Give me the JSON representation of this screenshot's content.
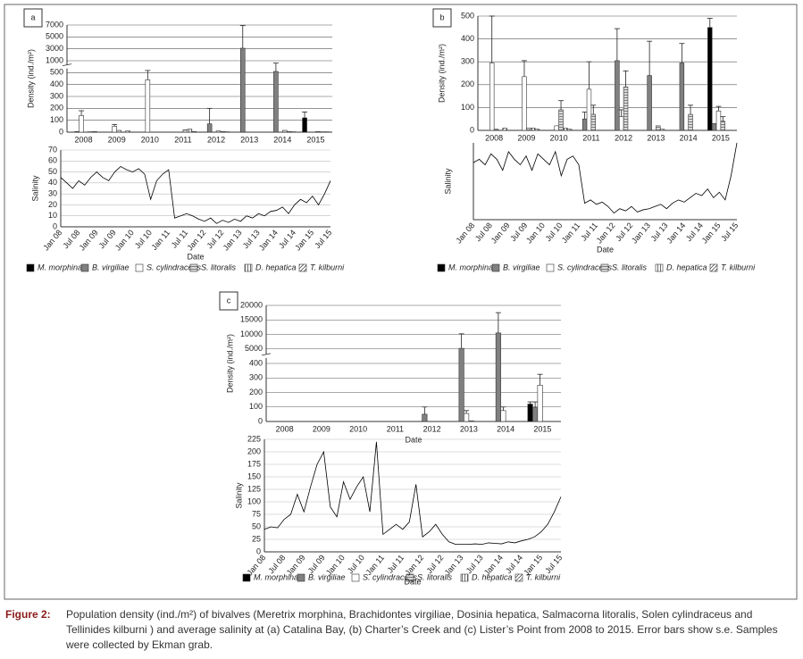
{
  "chart_data": [
    {
      "type": "bar",
      "label": "a",
      "ylabel": "Density (ind./m²)",
      "categories": [
        "2008",
        "2009",
        "2010",
        "2011",
        "2012",
        "2013",
        "2014",
        "2015"
      ],
      "ylim": [
        0,
        7000
      ],
      "yticks": [
        0,
        100,
        200,
        300,
        400,
        500,
        1000,
        3000,
        5000,
        7000
      ],
      "ybreak": true,
      "grid": true,
      "series": [
        {
          "name": "M. morphina",
          "color": "#000000",
          "pattern": "solid",
          "values": [
            0,
            0,
            0,
            0,
            0,
            0,
            0,
            120
          ],
          "errors": [
            null,
            null,
            null,
            null,
            null,
            null,
            null,
            50
          ]
        },
        {
          "name": "B. virgiliae",
          "color": "#808080",
          "pattern": "solid",
          "values": [
            5,
            0,
            0,
            0,
            70,
            3100,
            550,
            0
          ],
          "errors": [
            null,
            null,
            null,
            null,
            130,
            3800,
            350,
            null
          ]
        },
        {
          "name": "S. cylindraceus",
          "color": "#ffffff",
          "pattern": "solid",
          "values": [
            140,
            50,
            440,
            0,
            0,
            0,
            0,
            0
          ],
          "errors": [
            40,
            15,
            150,
            null,
            null,
            null,
            null,
            null
          ]
        },
        {
          "name": "S. litoralis",
          "color": "#d9d9d9",
          "pattern": "hlines",
          "values": [
            0,
            15,
            0,
            20,
            10,
            0,
            15,
            5
          ]
        },
        {
          "name": "D. hepatica",
          "color": "#ffffff",
          "pattern": "vlines",
          "values": [
            3,
            0,
            0,
            25,
            5,
            0,
            5,
            3
          ]
        },
        {
          "name": "T. kilburni",
          "color": "#ffffff",
          "pattern": "diag",
          "values": [
            5,
            10,
            0,
            5,
            3,
            0,
            3,
            3
          ]
        }
      ]
    },
    {
      "type": "line",
      "ylabel": "Salinity",
      "xlabel": "Date",
      "color": "#000000",
      "grid": true,
      "ylim": [
        0,
        70
      ],
      "yticks": [
        0,
        10,
        20,
        30,
        40,
        50,
        60,
        70
      ],
      "categories": [
        "Jan 08",
        null,
        null,
        "Jul 08",
        null,
        null,
        "Jan 09",
        null,
        null,
        "Jul 09",
        null,
        null,
        "Jan 10",
        null,
        null,
        "Jul 10",
        null,
        null,
        "Jan 11",
        null,
        null,
        "Jul 11",
        null,
        null,
        "Jan 12",
        null,
        null,
        "Jul 12",
        null,
        null,
        "Jan 13",
        null,
        null,
        "Jul 13",
        null,
        null,
        "Jan 14",
        null,
        null,
        "Jul 14",
        null,
        null,
        "Jan 15",
        null,
        null,
        "Jul 15"
      ],
      "values": [
        45,
        40,
        35,
        42,
        38,
        45,
        50,
        45,
        42,
        50,
        55,
        52,
        50,
        53,
        48,
        25,
        42,
        48,
        52,
        8,
        10,
        12,
        10,
        7,
        5,
        8,
        3,
        6,
        4,
        7,
        5,
        10,
        8,
        12,
        10,
        14,
        15,
        18,
        12,
        20,
        25,
        22,
        28,
        20,
        30,
        42
      ]
    },
    {
      "type": "bar",
      "label": "b",
      "ylabel": "Density (ind./m²)",
      "categories": [
        "2008",
        "2009",
        "2010",
        "2011",
        "2012",
        "2013",
        "2014",
        "2015"
      ],
      "ylim": [
        0,
        500
      ],
      "yticks": [
        0,
        100,
        200,
        300,
        400,
        500
      ],
      "grid": true,
      "series": [
        {
          "name": "M. morphina",
          "color": "#000000",
          "pattern": "solid",
          "values": [
            0,
            0,
            0,
            0,
            0,
            0,
            0,
            450
          ],
          "errors": [
            null,
            null,
            null,
            null,
            null,
            null,
            null,
            40
          ]
        },
        {
          "name": "B. virgiliae",
          "color": "#808080",
          "pattern": "solid",
          "values": [
            0,
            0,
            0,
            50,
            305,
            240,
            295,
            30
          ],
          "errors": [
            null,
            null,
            null,
            30,
            140,
            150,
            85,
            null
          ]
        },
        {
          "name": "S. cylindraceus",
          "color": "#ffffff",
          "pattern": "solid",
          "values": [
            295,
            235,
            20,
            180,
            60,
            0,
            0,
            85
          ],
          "errors": [
            205,
            70,
            null,
            120,
            30,
            null,
            null,
            20
          ]
        },
        {
          "name": "S. litoralis",
          "color": "#d9d9d9",
          "pattern": "hlines",
          "values": [
            5,
            10,
            90,
            70,
            190,
            20,
            70,
            40
          ],
          "errors": [
            null,
            null,
            40,
            40,
            70,
            null,
            40,
            20
          ]
        },
        {
          "name": "D. hepatica",
          "color": "#ffffff",
          "pattern": "vlines",
          "values": [
            0,
            10,
            10,
            0,
            0,
            5,
            0,
            0
          ]
        },
        {
          "name": "T. kilburni",
          "color": "#ffffff",
          "pattern": "diag",
          "values": [
            10,
            5,
            5,
            0,
            0,
            0,
            0,
            0
          ]
        }
      ]
    },
    {
      "type": "line",
      "ylabel": "Salinity",
      "xlabel": "Date",
      "color": "#000000",
      "grid": false,
      "ylim": [
        0,
        70
      ],
      "categories": [
        "Jan 08",
        null,
        null,
        "Jul 08",
        null,
        null,
        "Jan 09",
        null,
        null,
        "Jul 09",
        null,
        null,
        "Jan 10",
        null,
        null,
        "Jul 10",
        null,
        null,
        "Jan 11",
        null,
        null,
        "Jul 11",
        null,
        null,
        "Jan 12",
        null,
        null,
        "Jul 12",
        null,
        null,
        "Jan 13",
        null,
        null,
        "Jul 13",
        null,
        null,
        "Jan 14",
        null,
        null,
        "Jul 14",
        null,
        null,
        "Jan 15",
        null,
        null,
        "Jul 15"
      ],
      "values": [
        52,
        55,
        50,
        60,
        55,
        45,
        62,
        55,
        50,
        58,
        45,
        60,
        55,
        50,
        62,
        40,
        55,
        58,
        50,
        15,
        18,
        14,
        16,
        12,
        6,
        10,
        8,
        12,
        7,
        9,
        10,
        12,
        14,
        10,
        15,
        18,
        16,
        20,
        24,
        22,
        28,
        20,
        25,
        18,
        40,
        70
      ]
    },
    {
      "type": "bar",
      "label": "c",
      "ylabel": "Density (ind./m²)",
      "xlabel": "Date",
      "categories": [
        "2008",
        "2009",
        "2010",
        "2011",
        "2012",
        "2013",
        "2014",
        "2015"
      ],
      "ylim": [
        0,
        20000
      ],
      "yticks": [
        0,
        100,
        200,
        300,
        400,
        5000,
        10000,
        15000,
        20000
      ],
      "ybreak": true,
      "grid": true,
      "series": [
        {
          "name": "M. morphina",
          "color": "#000000",
          "pattern": "solid",
          "values": [
            0,
            0,
            0,
            0,
            0,
            0,
            0,
            120
          ],
          "errors": [
            null,
            null,
            null,
            null,
            null,
            null,
            null,
            15
          ]
        },
        {
          "name": "B. virgiliae",
          "color": "#808080",
          "pattern": "solid",
          "values": [
            0,
            0,
            0,
            0,
            50,
            5200,
            10500,
            95
          ],
          "errors": [
            null,
            null,
            null,
            null,
            50,
            5000,
            7000,
            40
          ]
        },
        {
          "name": "S. cylindraceus",
          "color": "#ffffff",
          "pattern": "solid",
          "values": [
            0,
            0,
            0,
            0,
            0,
            55,
            75,
            250
          ],
          "errors": [
            null,
            null,
            null,
            null,
            null,
            20,
            25,
            75
          ]
        },
        {
          "name": "S. litoralis",
          "color": "#d9d9d9",
          "pattern": "hlines",
          "values": [
            0,
            0,
            0,
            0,
            0,
            5,
            0,
            0
          ]
        },
        {
          "name": "D. hepatica",
          "color": "#ffffff",
          "pattern": "vlines",
          "values": [
            0,
            0,
            0,
            0,
            0,
            0,
            0,
            0
          ]
        },
        {
          "name": "T. kilburni",
          "color": "#ffffff",
          "pattern": "diag",
          "values": [
            0,
            0,
            0,
            0,
            0,
            0,
            0,
            0
          ]
        }
      ]
    },
    {
      "type": "line",
      "ylabel": "Salinity",
      "xlabel": "Date",
      "color": "#000000",
      "grid": true,
      "ylim": [
        0,
        225
      ],
      "yticks": [
        0,
        25,
        50,
        75,
        100,
        125,
        150,
        175,
        200,
        225
      ],
      "categories": [
        "Jan 08",
        null,
        null,
        "Jul 08",
        null,
        null,
        "Jan 09",
        null,
        null,
        "Jul 09",
        null,
        null,
        "Jan 10",
        null,
        null,
        "Jul 10",
        null,
        null,
        "Jan 11",
        null,
        null,
        "Jul 11",
        null,
        null,
        "Jan 12",
        null,
        null,
        "Jul 12",
        null,
        null,
        "Jan 13",
        null,
        null,
        "Jul 13",
        null,
        null,
        "Jan 14",
        null,
        null,
        "Jul 14",
        null,
        null,
        "Jan 15",
        null,
        null,
        "Jul 15"
      ],
      "values": [
        45,
        50,
        48,
        65,
        75,
        115,
        80,
        130,
        175,
        200,
        90,
        70,
        140,
        105,
        130,
        150,
        80,
        220,
        35,
        45,
        55,
        45,
        60,
        135,
        30,
        40,
        55,
        35,
        20,
        15,
        15,
        15,
        16,
        15,
        18,
        17,
        16,
        20,
        18,
        22,
        25,
        30,
        40,
        55,
        80,
        110
      ]
    }
  ],
  "caption": {
    "label": "Figure 2:",
    "text": "Population density (ind./m²) of bivalves (Meretrix morphina, Brachidontes virgiliae, Dosinia hepatica, Salmacorna litoralis, Solen cylindraceus and Tellinides kilburni ) and average salinity at (a) Catalina Bay, (b) Charter’s Creek and (c) Lister’s Point from 2008 to 2015. Error bars show s.e. Samples were collected by Ekman grab."
  }
}
